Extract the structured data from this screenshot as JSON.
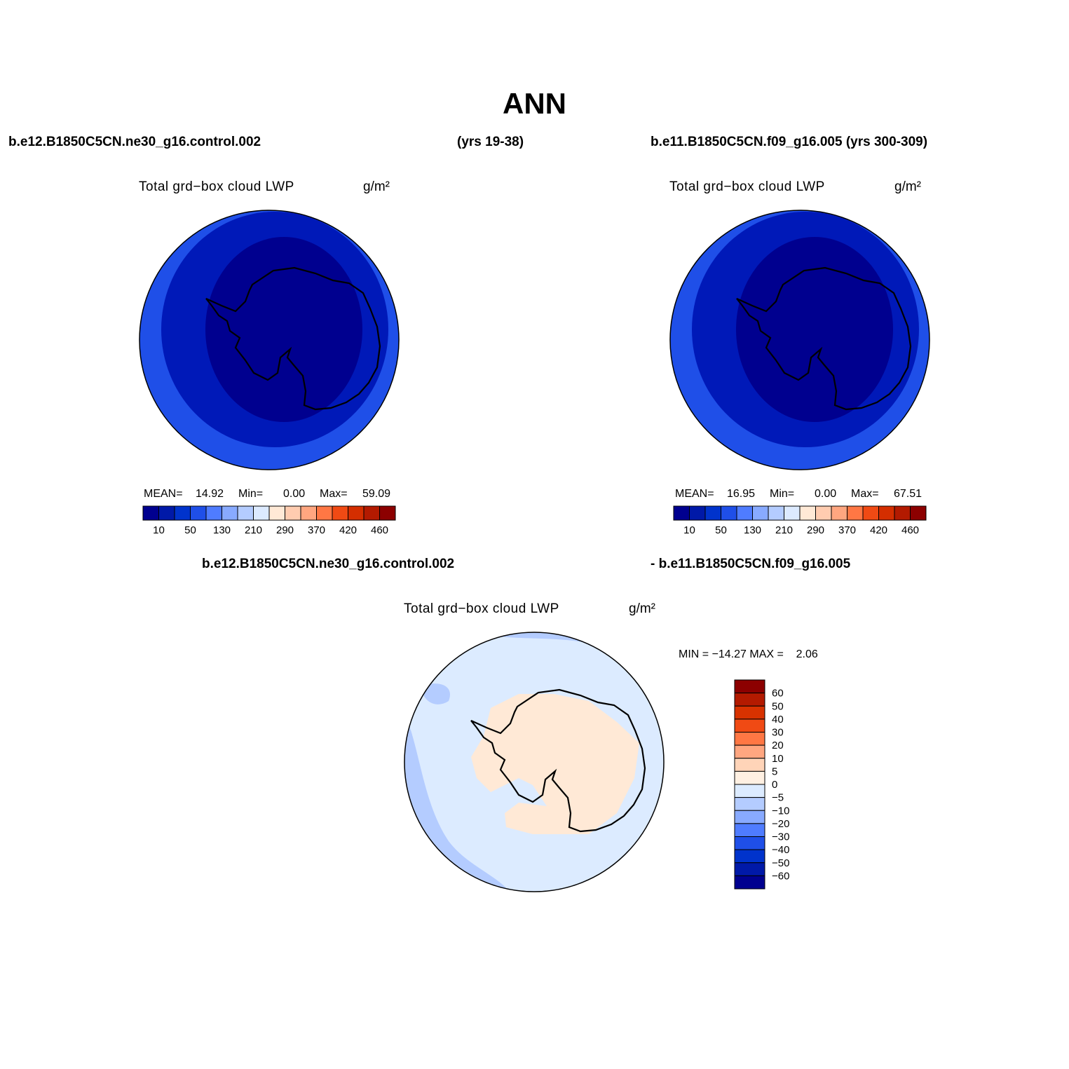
{
  "title": "ANN",
  "case_left": "b.e12.B1850C5CN.ne30_g16.control.002",
  "years_left": "(yrs 19-38)",
  "case_right": "b.e11.B1850C5CN.f09_g16.005 (yrs 300-309)",
  "diff_case_a": "b.e12.B1850C5CN.ne30_g16.control.002",
  "diff_case_b": "- b.e11.B1850C5CN.f09_g16.005",
  "panels": [
    {
      "id": "left",
      "variable": "Total grd−box cloud LWP",
      "units": "g/m²",
      "mean_label": "MEAN=",
      "mean": "14.92",
      "min_label": "Min=",
      "min": "0.00",
      "max_label": "Max=",
      "max": "59.09"
    },
    {
      "id": "right",
      "variable": "Total grd−box cloud LWP",
      "units": "g/m²",
      "mean_label": "MEAN=",
      "mean": "16.95",
      "min_label": "Min=",
      "min": "0.00",
      "max_label": "Max=",
      "max": "67.51"
    }
  ],
  "diff_panel": {
    "variable": "Total grd−box cloud LWP",
    "units": "g/m²",
    "minmax": "MIN = −14.27 MAX =    2.06"
  },
  "colorbar_abs": {
    "colors": [
      "#00008f",
      "#0019a8",
      "#0033cc",
      "#1f4fe8",
      "#4f7cff",
      "#88aaff",
      "#b4ccff",
      "#dceaff",
      "#ffe9d6",
      "#ffccb0",
      "#ffa680",
      "#ff7744",
      "#f04a14",
      "#d42e00",
      "#b31a00",
      "#8c0000"
    ],
    "labels": [
      "10",
      "50",
      "130",
      "210",
      "290",
      "370",
      "420",
      "460"
    ]
  },
  "colorbar_diff": {
    "colors": [
      "#8c0000",
      "#b31a00",
      "#d83200",
      "#f04a14",
      "#ff7744",
      "#ffa680",
      "#ffd4b8",
      "#fff0e2",
      "#dcebff",
      "#b4ccff",
      "#88aaff",
      "#4f7cff",
      "#1f4fe8",
      "#0033cc",
      "#0019a8",
      "#00008f"
    ],
    "labels": [
      "60",
      "50",
      "40",
      "30",
      "20",
      "10",
      "5",
      "0",
      "−5",
      "−10",
      "−20",
      "−30",
      "−40",
      "−50",
      "−60"
    ]
  },
  "map_colors": {
    "abs_outer": "#1f4fe8",
    "abs_mid": "#0019b8",
    "abs_inner": "#00008f",
    "diff_bg": "#dcebff",
    "diff_neg": "#b4ccff",
    "diff_pos": "#ffe9d6",
    "coast": "#000000"
  }
}
